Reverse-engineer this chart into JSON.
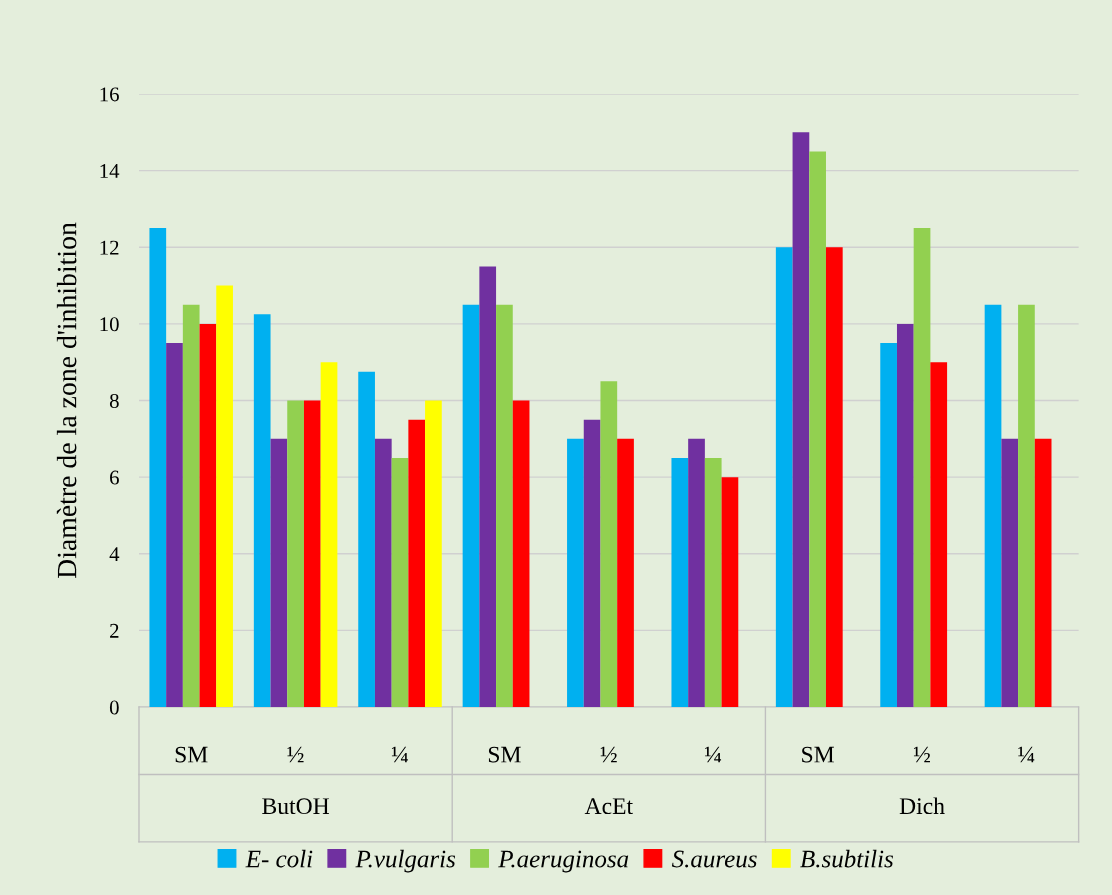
{
  "chart_data": {
    "type": "bar",
    "ylabel": "Diamètre de la zone d'inhibition",
    "categories": [
      "SM",
      "½",
      "¼",
      "SM",
      "½",
      "¼",
      "SM",
      "½",
      "¼"
    ],
    "annotations": [
      "ButOH",
      "AcEt",
      "Dich"
    ],
    "series": [
      {
        "name": "E- coli",
        "color": "#00b0f0",
        "values": [
          12.5,
          10.25,
          8.75,
          10.5,
          7,
          6.5,
          12,
          9.5,
          10.5
        ]
      },
      {
        "name": "P.vulgaris",
        "color": "#7030a0",
        "values": [
          9.5,
          7,
          7,
          11.5,
          7.5,
          7,
          15,
          10,
          7
        ]
      },
      {
        "name": "P.aeruginosa",
        "color": "#92d050",
        "values": [
          10.5,
          8,
          6.5,
          10.5,
          8.5,
          6.5,
          14.5,
          12.5,
          10.5
        ]
      },
      {
        "name": "S.aureus",
        "color": "#ff0000",
        "values": [
          10,
          8,
          7.5,
          8,
          7,
          6,
          12,
          9,
          7
        ]
      },
      {
        "name": "B.subtilis",
        "color": "#ffff00",
        "values": [
          11,
          9,
          8,
          null,
          null,
          null,
          null,
          null,
          null
        ]
      }
    ],
    "ylim": [
      0,
      16
    ],
    "yticks": [
      0,
      2,
      4,
      6,
      8,
      10,
      12,
      14,
      16
    ],
    "grid": "y",
    "legend": "bottom"
  }
}
